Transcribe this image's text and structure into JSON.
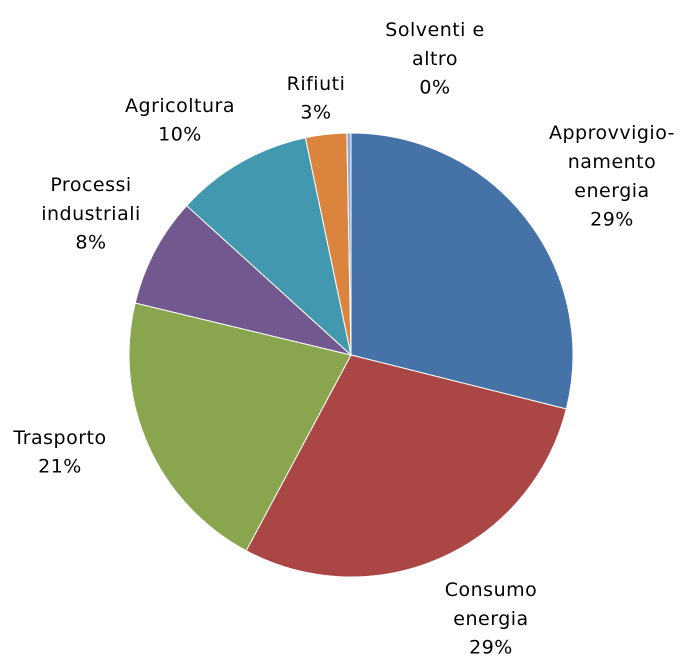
{
  "chart_data": {
    "type": "pie",
    "categories": [
      "Approvvigio-\nnamento\nenergia",
      "Consumo\nenergia",
      "Trasporto",
      "Processi\nindustriali",
      "Agricoltura",
      "Rifiuti",
      "Solventi e\naltro"
    ],
    "values": [
      29,
      29,
      21,
      8,
      10,
      3,
      0.3
    ],
    "value_labels": [
      "29%",
      "29%",
      "21%",
      "8%",
      "10%",
      "3%",
      "0%"
    ],
    "colors": [
      "#4572a7",
      "#aa4643",
      "#89a54e",
      "#71588f",
      "#4198af",
      "#db843d",
      "#93a9cf"
    ]
  }
}
